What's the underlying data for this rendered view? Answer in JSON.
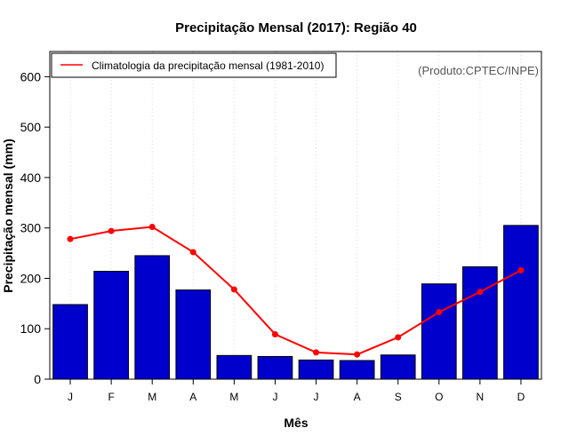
{
  "chart_data": {
    "type": "bar",
    "title": "Precipitação Mensal (2017): Região 40",
    "xlabel": "Mês",
    "ylabel": "Precipitação mensal (mm)",
    "ylim": [
      0,
      650
    ],
    "yticks": [
      0,
      100,
      200,
      300,
      400,
      500,
      600
    ],
    "categories": [
      "J",
      "F",
      "M",
      "A",
      "M",
      "J",
      "J",
      "A",
      "S",
      "O",
      "N",
      "D"
    ],
    "series": [
      {
        "name": "Precipitação mensal (2017)",
        "type": "bar",
        "color": "#0000cc",
        "values": [
          148,
          214,
          245,
          177,
          47,
          45,
          38,
          37,
          48,
          189,
          223,
          305
        ]
      },
      {
        "name": "Climatologia da precipitação mensal (1981-2010)",
        "type": "line",
        "color": "#ff0000",
        "values": [
          278,
          294,
          302,
          252,
          178,
          89,
          53,
          49,
          83,
          133,
          173,
          216
        ]
      }
    ],
    "legend": {
      "position": "top-left",
      "entries": [
        "Climatologia da precipitação mensal (1981-2010)"
      ]
    },
    "annotation": "(Produto:CPTEC/INPE)",
    "grid": "vertical dotted"
  }
}
